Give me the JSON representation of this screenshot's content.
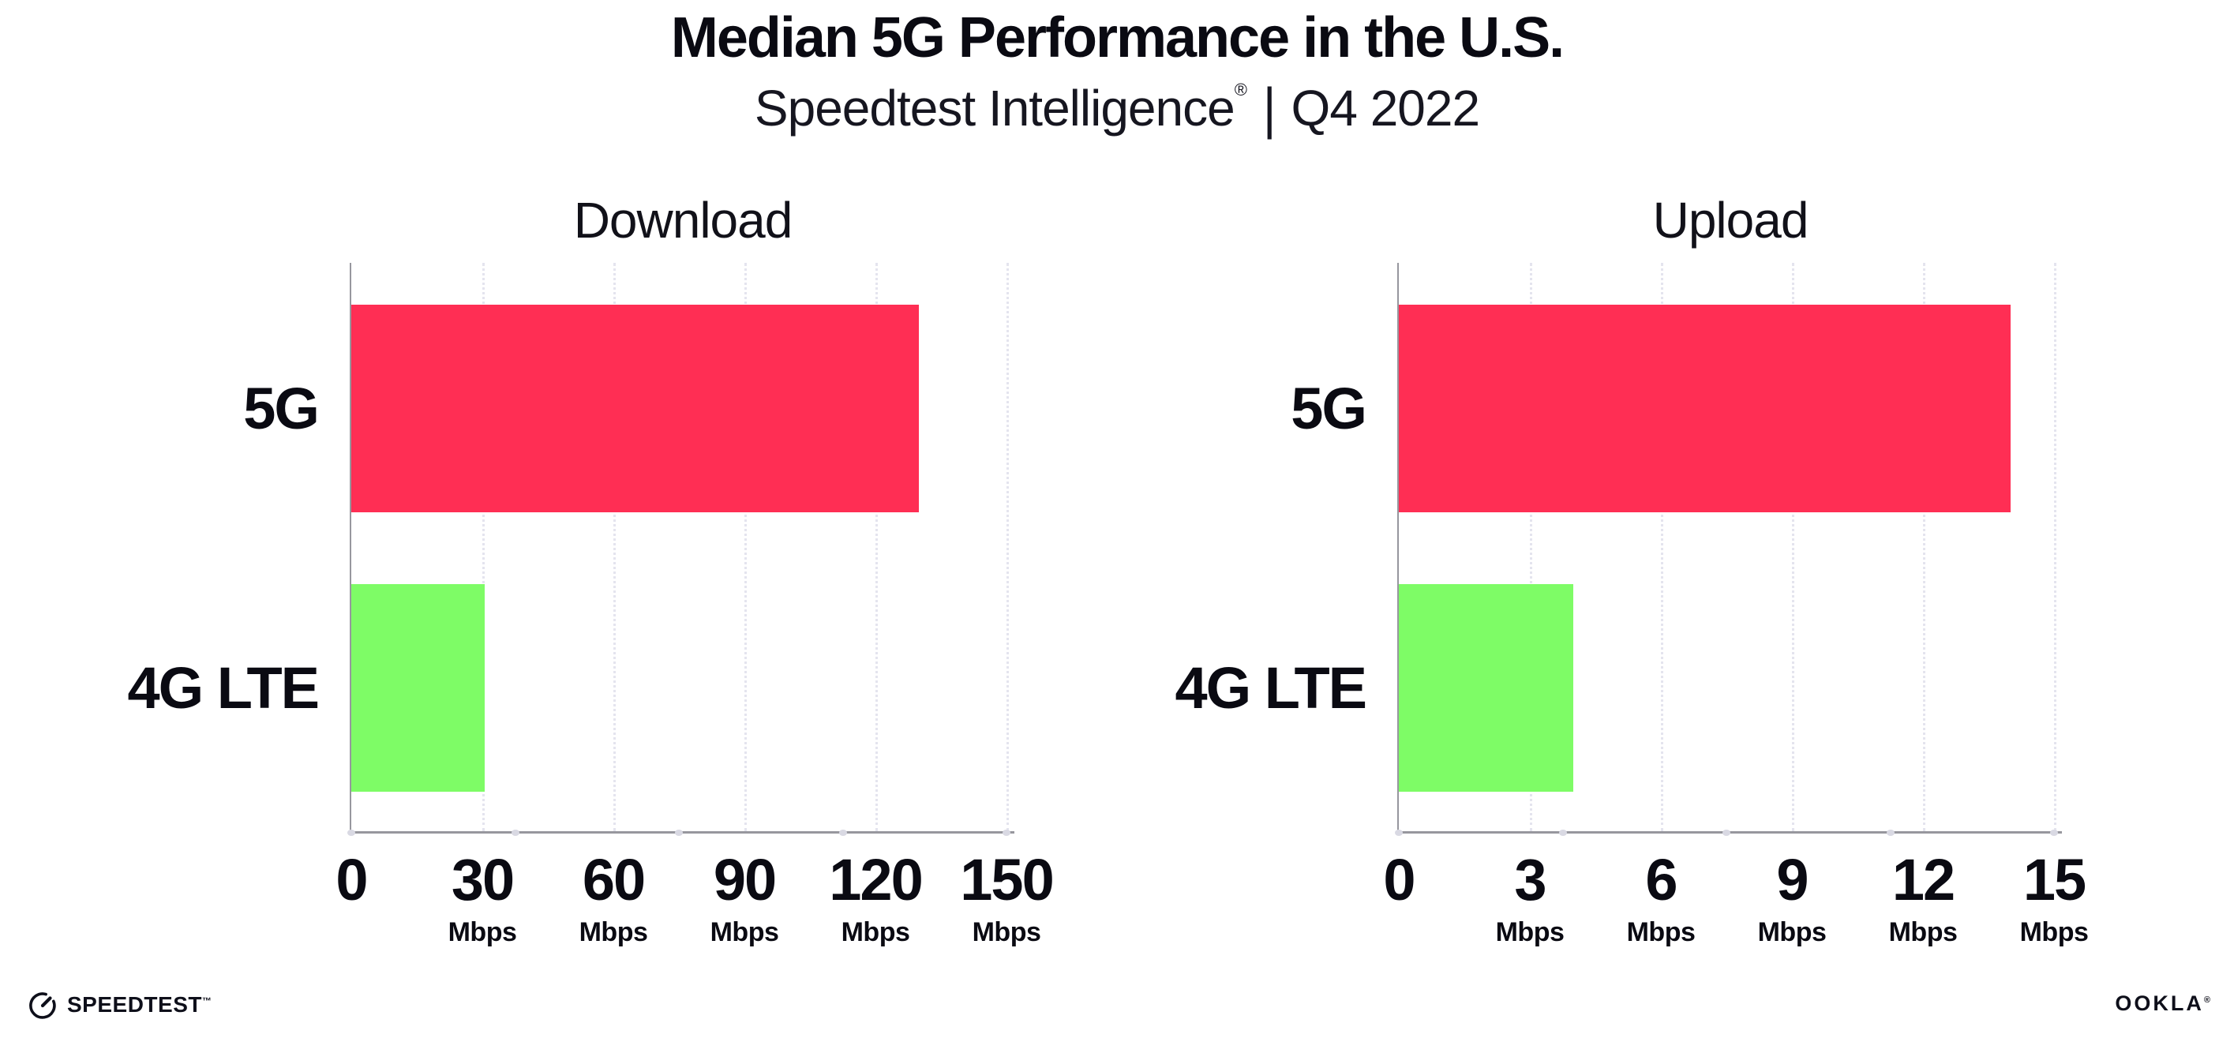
{
  "header": {
    "title": "Median 5G Performance in the U.S.",
    "subtitle": {
      "brand": "Speedtest Intelligence",
      "registered": "®",
      "separator": "|",
      "period": "Q4 2022"
    }
  },
  "chart_data": [
    {
      "type": "bar",
      "orientation": "horizontal",
      "title": "Download",
      "categories": [
        "5G",
        "4G LTE"
      ],
      "values": [
        130,
        30.5
      ],
      "unit": "Mbps",
      "xlabel": "",
      "ylabel": "",
      "xlim": [
        0,
        150
      ],
      "xticks": [
        0,
        30,
        60,
        90,
        120,
        150
      ],
      "tick_unit_label": "Mbps",
      "bar_colors": [
        "#FF2E54",
        "#7EFC66"
      ],
      "grid": "dotted-vertical",
      "legend": "none"
    },
    {
      "type": "bar",
      "orientation": "horizontal",
      "title": "Upload",
      "categories": [
        "5G",
        "4G LTE"
      ],
      "values": [
        14,
        4
      ],
      "unit": "Mbps",
      "xlabel": "",
      "ylabel": "",
      "xlim": [
        0,
        15
      ],
      "xticks": [
        0,
        3,
        6,
        9,
        12,
        15
      ],
      "tick_unit_label": "Mbps",
      "bar_colors": [
        "#FF2E54",
        "#7EFC66"
      ],
      "grid": "dotted-vertical",
      "legend": "none"
    }
  ],
  "footer": {
    "speedtest_wordmark": "SPEEDTEST",
    "speedtest_trademark": "™",
    "ookla_wordmark": "OOKLA",
    "ookla_registered": "®"
  }
}
